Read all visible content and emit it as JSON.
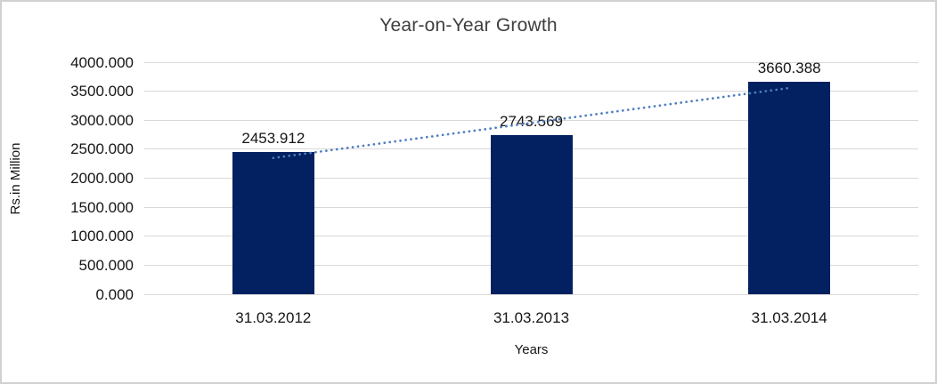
{
  "chart_data": {
    "type": "bar",
    "title": "Year-on-Year Growth",
    "xlabel": "Years",
    "ylabel": "Rs.in Million",
    "categories": [
      "31.03.2012",
      "31.03.2013",
      "31.03.2014"
    ],
    "values": [
      2453.912,
      2743.569,
      3660.388
    ],
    "data_labels": [
      "2453.912",
      "2743.569",
      "3660.388"
    ],
    "ylim": [
      0,
      4000
    ],
    "ytick_step": 500,
    "yticks": [
      "0.000",
      "500.000",
      "1000.000",
      "1500.000",
      "2000.000",
      "2500.000",
      "3000.000",
      "3500.000",
      "4000.000"
    ],
    "grid": true,
    "legend_position": "none",
    "bar_color": "#032161",
    "gridline_color": "#d9d9d9",
    "trendline": {
      "type": "linear",
      "style": "dotted",
      "color": "#4d7ebf"
    }
  }
}
